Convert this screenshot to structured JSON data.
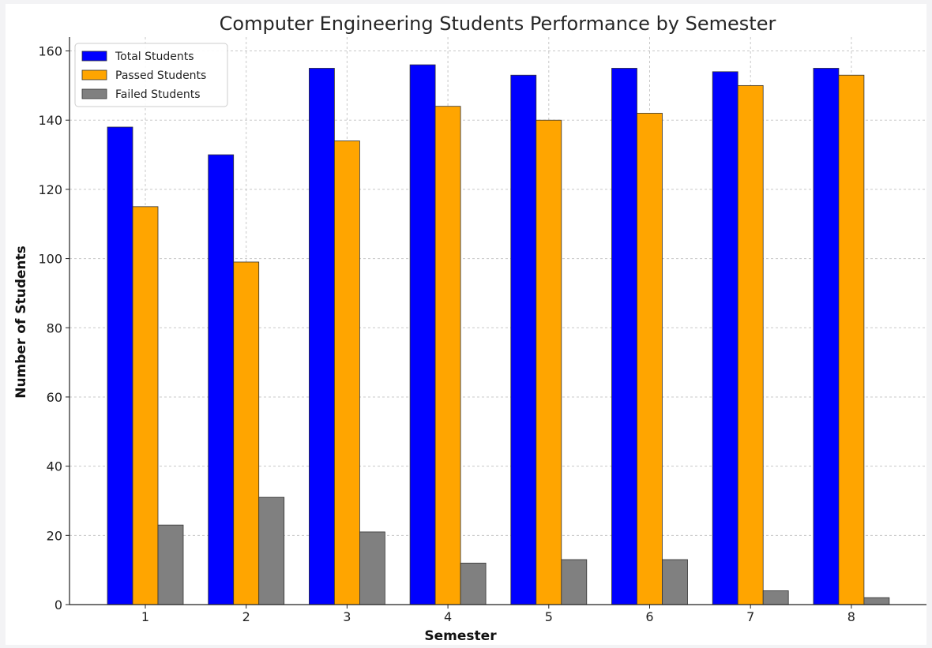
{
  "chart_data": {
    "type": "bar",
    "title": "Computer Engineering Students Performance by Semester",
    "xlabel": "Semester",
    "ylabel": "Number of Students",
    "categories": [
      "1",
      "2",
      "3",
      "4",
      "5",
      "6",
      "7",
      "8"
    ],
    "series": [
      {
        "name": "Total Students",
        "color": "#0000ff",
        "values": [
          138,
          130,
          155,
          156,
          153,
          155,
          154,
          155
        ]
      },
      {
        "name": "Passed Students",
        "color": "#ffa500",
        "values": [
          115,
          99,
          134,
          144,
          140,
          142,
          150,
          153
        ]
      },
      {
        "name": "Failed Students",
        "color": "#808080",
        "values": [
          23,
          31,
          21,
          12,
          13,
          13,
          4,
          2
        ]
      }
    ],
    "ylim": [
      0,
      164
    ],
    "yticks": [
      0,
      20,
      40,
      60,
      80,
      100,
      120,
      140,
      160
    ],
    "grid": true,
    "legend_position": "top-left"
  }
}
